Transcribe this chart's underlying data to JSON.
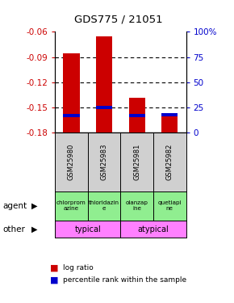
{
  "title": "GDS775 / 21051",
  "samples": [
    "GSM25980",
    "GSM25983",
    "GSM25981",
    "GSM25982"
  ],
  "log_ratio": [
    -0.0855,
    -0.065,
    -0.138,
    -0.158
  ],
  "percentile_rank": [
    17,
    25,
    17,
    18
  ],
  "ylim": [
    -0.18,
    -0.06
  ],
  "yticks_left": [
    -0.18,
    -0.15,
    -0.12,
    -0.09,
    -0.06
  ],
  "yticks_right_pct": [
    0,
    25,
    50,
    75,
    100
  ],
  "agent_labels": [
    "chlorprom\nazine",
    "thioridazin\ne",
    "olanzap\nine",
    "quetiapi\nne"
  ],
  "agent_color": "#90EE90",
  "other_labels": [
    "typical",
    "atypical"
  ],
  "other_color": "#FF80FF",
  "bar_color": "#CC0000",
  "marker_color": "#0000CC",
  "bar_width": 0.5,
  "left_label_color": "#CC0000",
  "right_label_color": "#0000CC",
  "bg_color": "#FFFFFF",
  "sample_box_color": "#D0D0D0",
  "grid_yticks": [
    -0.15,
    -0.12,
    -0.09
  ]
}
